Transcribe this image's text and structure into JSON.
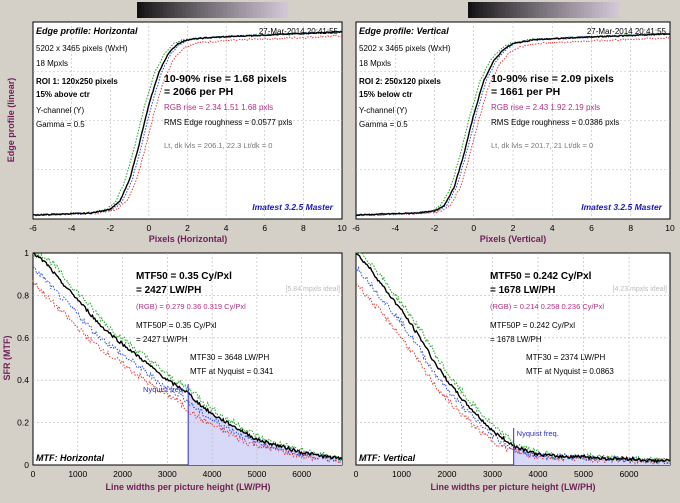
{
  "edge_panels": [
    {
      "title": "Edge profile: Horizontal",
      "datetime": "27-Mar-2014 20:41:55",
      "size": "5202 x 3465 pixels (WxH)",
      "mpxls": "18 Mpxls",
      "roi1": "ROI 1:  120x250 pixels",
      "roi2": "15% above ctr",
      "channel": "Y-channel  (Y)",
      "gamma": "Gamma = 0.5",
      "rise": "10-90% rise = 1.68 pixels",
      "perph": "= 2066 per PH",
      "rgb": "RGB rise = 2.34  1.51  1.68 pxls",
      "rms": "RMS Edge roughness = 0.0577 pxls",
      "levels": "Lt, dk lvls = 206.1, 22.3    Lt/dk = 0",
      "brand": "Imatest 3.2.5 Master",
      "xlabel": "Pixels (Horizontal)",
      "ylabel": "Edge profile (linear)",
      "xticks": [
        "-6",
        "-4",
        "-2",
        "0",
        "2",
        "4",
        "6",
        "8",
        "10"
      ]
    },
    {
      "title": "Edge profile: Vertical",
      "datetime": "27-Mar-2014 20:41:55",
      "size": "5202 x 3465 pixels (WxH)",
      "mpxls": "18 Mpxls",
      "roi1": "ROI 2:  250x120 pixels",
      "roi2": "15% below ctr",
      "channel": "Y-channel  (Y)",
      "gamma": "Gamma = 0.5",
      "rise": "10-90% rise = 2.09 pixels",
      "perph": "= 1661 per PH",
      "rgb": "RGB rise = 2.43  1.92  2.19 pxls",
      "rms": "RMS Edge roughness = 0.0386 pxls",
      "levels": "Lt, dk lvls = 201.7, 21    Lt/dk = 0",
      "brand": "Imatest 3.2.5 Master",
      "xlabel": "Pixels (Vertical)",
      "ylabel": "",
      "xticks": [
        "-6",
        "-4",
        "-2",
        "0",
        "2",
        "4",
        "6",
        "8",
        "10"
      ]
    }
  ],
  "mtf_panels": [
    {
      "title": "MTF: Horizontal",
      "mtf50": "MTF50 = 0.35 Cy/Pxl",
      "mtf50lw": "= 2427 LW/PH",
      "ideal": "[5.84 mpxls ideal]",
      "rgb": "(RGB) = 0.279  0.36  0.319 Cy/Pxl",
      "mtf50p": "MTF50P = 0.35 Cy/Pxl",
      "mtf50plw": "= 2427 LW/PH",
      "mtf30": "MTF30 = 3648 LW/PH",
      "nyq": "MTF at Nyquist = 0.341",
      "nyqlabel": "Nyquist freq.",
      "xlabel": "Line widths per picture height (LW/PH)",
      "ylabel": "SFR (MTF)",
      "yticks": [
        "1",
        "0.8",
        "0.6",
        "0.4",
        "0.2",
        "0"
      ],
      "xticks": [
        "0",
        "1000",
        "2000",
        "3000",
        "4000",
        "5000",
        "6000"
      ]
    },
    {
      "title": "MTF: Vertical",
      "mtf50": "MTF50 = 0.242 Cy/Pxl",
      "mtf50lw": "= 1678 LW/PH",
      "ideal": "[4.23 mpxls ideal]",
      "rgb": "(RGB) = 0.214  0.258  0.236 Cy/Pxl",
      "mtf50p": "MTF50P = 0.242 Cy/Pxl",
      "mtf50plw": "= 1678 LW/PH",
      "mtf30": "MTF30 = 2374 LW/PH",
      "nyq": "MTF at Nyquist = 0.0863",
      "nyqlabel": "Nyquist freq.",
      "xlabel": "Line widths per picture height (LW/PH)",
      "ylabel": "",
      "yticks": [],
      "xticks": [
        "0",
        "1000",
        "2000",
        "3000",
        "4000",
        "5000",
        "6000"
      ]
    }
  ],
  "chart_data": [
    {
      "type": "line",
      "title": "Edge profile: Horizontal",
      "xlabel": "Pixels (Horizontal)",
      "ylabel": "Edge profile (linear)",
      "xlim": [
        -6,
        10
      ],
      "series": [
        {
          "name": "Y",
          "x": [
            -6,
            -3,
            -2,
            -1.5,
            -1,
            -0.5,
            0,
            0.5,
            1,
            1.5,
            2,
            3,
            5,
            10
          ],
          "values": [
            0.02,
            0.03,
            0.05,
            0.09,
            0.2,
            0.38,
            0.58,
            0.74,
            0.84,
            0.89,
            0.91,
            0.92,
            0.93,
            0.95
          ]
        }
      ]
    },
    {
      "type": "line",
      "title": "Edge profile: Vertical",
      "xlabel": "Pixels (Vertical)",
      "xlim": [
        -6,
        10
      ],
      "series": [
        {
          "name": "Y",
          "x": [
            -6,
            -3,
            -2,
            -1.5,
            -1,
            -0.5,
            0,
            0.5,
            1,
            1.5,
            2,
            3,
            5,
            10
          ],
          "values": [
            0.02,
            0.03,
            0.04,
            0.07,
            0.16,
            0.33,
            0.53,
            0.7,
            0.8,
            0.86,
            0.89,
            0.91,
            0.92,
            0.94
          ]
        }
      ]
    },
    {
      "type": "line",
      "title": "MTF: Horizontal",
      "xlabel": "Line widths per picture height (LW/PH)",
      "ylabel": "SFR (MTF)",
      "xlim": [
        0,
        6900
      ],
      "ylim": [
        0,
        1
      ],
      "nyquist": 3465,
      "series": [
        {
          "name": "Y",
          "x": [
            0,
            300,
            600,
            1000,
            1500,
            2000,
            2427,
            3000,
            3465,
            3648,
            4000,
            4500,
            5000,
            5500,
            6000,
            6500,
            6900
          ],
          "values": [
            1,
            0.95,
            0.87,
            0.78,
            0.66,
            0.57,
            0.5,
            0.4,
            0.34,
            0.3,
            0.24,
            0.18,
            0.12,
            0.09,
            0.06,
            0.04,
            0.03
          ]
        }
      ]
    },
    {
      "type": "line",
      "title": "MTF: Vertical",
      "xlabel": "Line widths per picture height (LW/PH)",
      "xlim": [
        0,
        6900
      ],
      "ylim": [
        0,
        1
      ],
      "nyquist": 3465,
      "series": [
        {
          "name": "Y",
          "x": [
            0,
            300,
            600,
            1000,
            1500,
            1678,
            2000,
            2374,
            3000,
            3465,
            4000,
            4500,
            5000,
            5500,
            6000,
            6500,
            6900
          ],
          "values": [
            1,
            0.93,
            0.84,
            0.73,
            0.57,
            0.5,
            0.4,
            0.3,
            0.16,
            0.09,
            0.05,
            0.04,
            0.04,
            0.03,
            0.03,
            0.02,
            0.02
          ]
        }
      ]
    }
  ]
}
